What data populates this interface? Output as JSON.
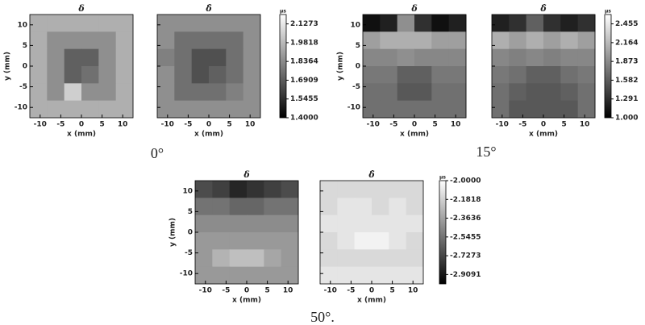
{
  "chart_data": [
    {
      "type": "heatmap",
      "caption": "0°",
      "xlabel": "x (mm)",
      "ylabel": "y (mm)",
      "xlim": [
        -12.5,
        12.5
      ],
      "ylim": [
        -12.5,
        12.5
      ],
      "xticks": [
        -10,
        -5,
        0,
        5,
        10
      ],
      "yticks": [
        -10,
        -5,
        0,
        5,
        10
      ],
      "colorbar": {
        "unit": "µs",
        "lim": [
          1.4,
          2.2
        ],
        "ticks": [
          2.1273,
          1.9818,
          1.8364,
          1.6909,
          1.5455,
          {
            "value": 1.4,
            "label": "1.4000"
          }
        ]
      },
      "panels": [
        {
          "title": "δ",
          "z": [
            [
              1.95,
              1.95,
              1.95,
              1.95,
              1.95,
              1.95
            ],
            [
              1.95,
              1.85,
              1.85,
              1.85,
              1.85,
              1.95
            ],
            [
              1.95,
              1.85,
              1.7,
              1.7,
              1.85,
              1.95
            ],
            [
              1.95,
              1.85,
              1.7,
              1.75,
              1.85,
              1.95
            ],
            [
              1.95,
              1.85,
              2.05,
              1.85,
              1.85,
              1.95
            ],
            [
              1.95,
              1.95,
              1.95,
              1.95,
              1.95,
              1.95
            ]
          ]
        },
        {
          "title": "δ̂",
          "z": [
            [
              1.85,
              1.85,
              1.85,
              1.85,
              1.85,
              1.85
            ],
            [
              1.85,
              1.75,
              1.75,
              1.75,
              1.75,
              1.85
            ],
            [
              1.8,
              1.75,
              1.65,
              1.65,
              1.75,
              1.85
            ],
            [
              1.85,
              1.75,
              1.65,
              1.7,
              1.75,
              1.85
            ],
            [
              1.85,
              1.75,
              1.75,
              1.75,
              1.8,
              1.85
            ],
            [
              1.85,
              1.85,
              1.85,
              1.85,
              1.85,
              1.85
            ]
          ]
        }
      ]
    },
    {
      "type": "heatmap",
      "caption": "15°",
      "xlabel": "x (mm)",
      "ylabel": "y (mm)",
      "xlim": [
        -12.5,
        12.5
      ],
      "ylim": [
        -12.5,
        12.5
      ],
      "xticks": [
        -10,
        -5,
        0,
        5,
        10
      ],
      "yticks": [
        -10,
        -5,
        0,
        5,
        10
      ],
      "colorbar": {
        "unit": "µs",
        "lim": [
          1.0,
          2.6
        ],
        "ticks": [
          2.455,
          2.164,
          1.873,
          1.582,
          1.291,
          {
            "value": 1.0,
            "label": "1.000"
          }
        ]
      },
      "panels": [
        {
          "title": "δ",
          "z": [
            [
              1.1,
              1.2,
              1.9,
              1.3,
              1.1,
              1.2
            ],
            [
              2.0,
              2.1,
              2.1,
              2.1,
              2.0,
              2.0
            ],
            [
              1.85,
              1.85,
              1.9,
              1.85,
              1.85,
              1.85
            ],
            [
              1.75,
              1.75,
              1.6,
              1.6,
              1.75,
              1.75
            ],
            [
              1.7,
              1.7,
              1.55,
              1.55,
              1.7,
              1.7
            ],
            [
              1.7,
              1.7,
              1.7,
              1.7,
              1.7,
              1.7
            ]
          ]
        },
        {
          "title": "δ̂",
          "z": [
            [
              1.2,
              1.3,
              1.6,
              1.3,
              1.2,
              1.3
            ],
            [
              2.1,
              2.0,
              2.1,
              2.0,
              2.1,
              2.0
            ],
            [
              1.85,
              1.8,
              1.85,
              1.8,
              1.85,
              1.85
            ],
            [
              1.75,
              1.7,
              1.6,
              1.6,
              1.7,
              1.75
            ],
            [
              1.7,
              1.6,
              1.55,
              1.55,
              1.6,
              1.7
            ],
            [
              1.7,
              1.55,
              1.55,
              1.55,
              1.55,
              1.7
            ]
          ]
        }
      ]
    },
    {
      "type": "heatmap",
      "caption": "50°.",
      "xlabel": "x (mm)",
      "ylabel": "y (mm)",
      "xlim": [
        -12.5,
        12.5
      ],
      "ylim": [
        -12.5,
        12.5
      ],
      "xticks": [
        -10,
        -5,
        0,
        5,
        10
      ],
      "yticks": [
        -10,
        -5,
        0,
        5,
        10
      ],
      "colorbar": {
        "unit": "µs",
        "lim": [
          -3.0,
          -2.0
        ],
        "ticks": [
          {
            "value": -2.0,
            "label": "-2.0000"
          },
          -2.1818,
          -2.3636,
          -2.5455,
          -2.7273,
          -2.9091
        ]
      },
      "panels": [
        {
          "title": "δ",
          "z": [
            [
              -2.7,
              -2.75,
              -2.85,
              -2.8,
              -2.75,
              -2.7
            ],
            [
              -2.55,
              -2.55,
              -2.6,
              -2.6,
              -2.55,
              -2.55
            ],
            [
              -2.45,
              -2.45,
              -2.45,
              -2.45,
              -2.45,
              -2.45
            ],
            [
              -2.4,
              -2.4,
              -2.4,
              -2.4,
              -2.4,
              -2.4
            ],
            [
              -2.4,
              -2.3,
              -2.25,
              -2.25,
              -2.35,
              -2.4
            ],
            [
              -2.4,
              -2.4,
              -2.4,
              -2.4,
              -2.4,
              -2.4
            ]
          ]
        },
        {
          "title": "δ̂",
          "z": [
            [
              -2.15,
              -2.15,
              -2.15,
              -2.15,
              -2.15,
              -2.15
            ],
            [
              -2.15,
              -2.1,
              -2.1,
              -2.15,
              -2.1,
              -2.15
            ],
            [
              -2.1,
              -2.1,
              -2.1,
              -2.1,
              -2.1,
              -2.1
            ],
            [
              -2.15,
              -2.1,
              -2.05,
              -2.05,
              -2.1,
              -2.15
            ],
            [
              -2.15,
              -2.15,
              -2.15,
              -2.15,
              -2.15,
              -2.15
            ],
            [
              -2.1,
              -2.1,
              -2.1,
              -2.1,
              -2.1,
              -2.1
            ]
          ]
        }
      ]
    }
  ]
}
